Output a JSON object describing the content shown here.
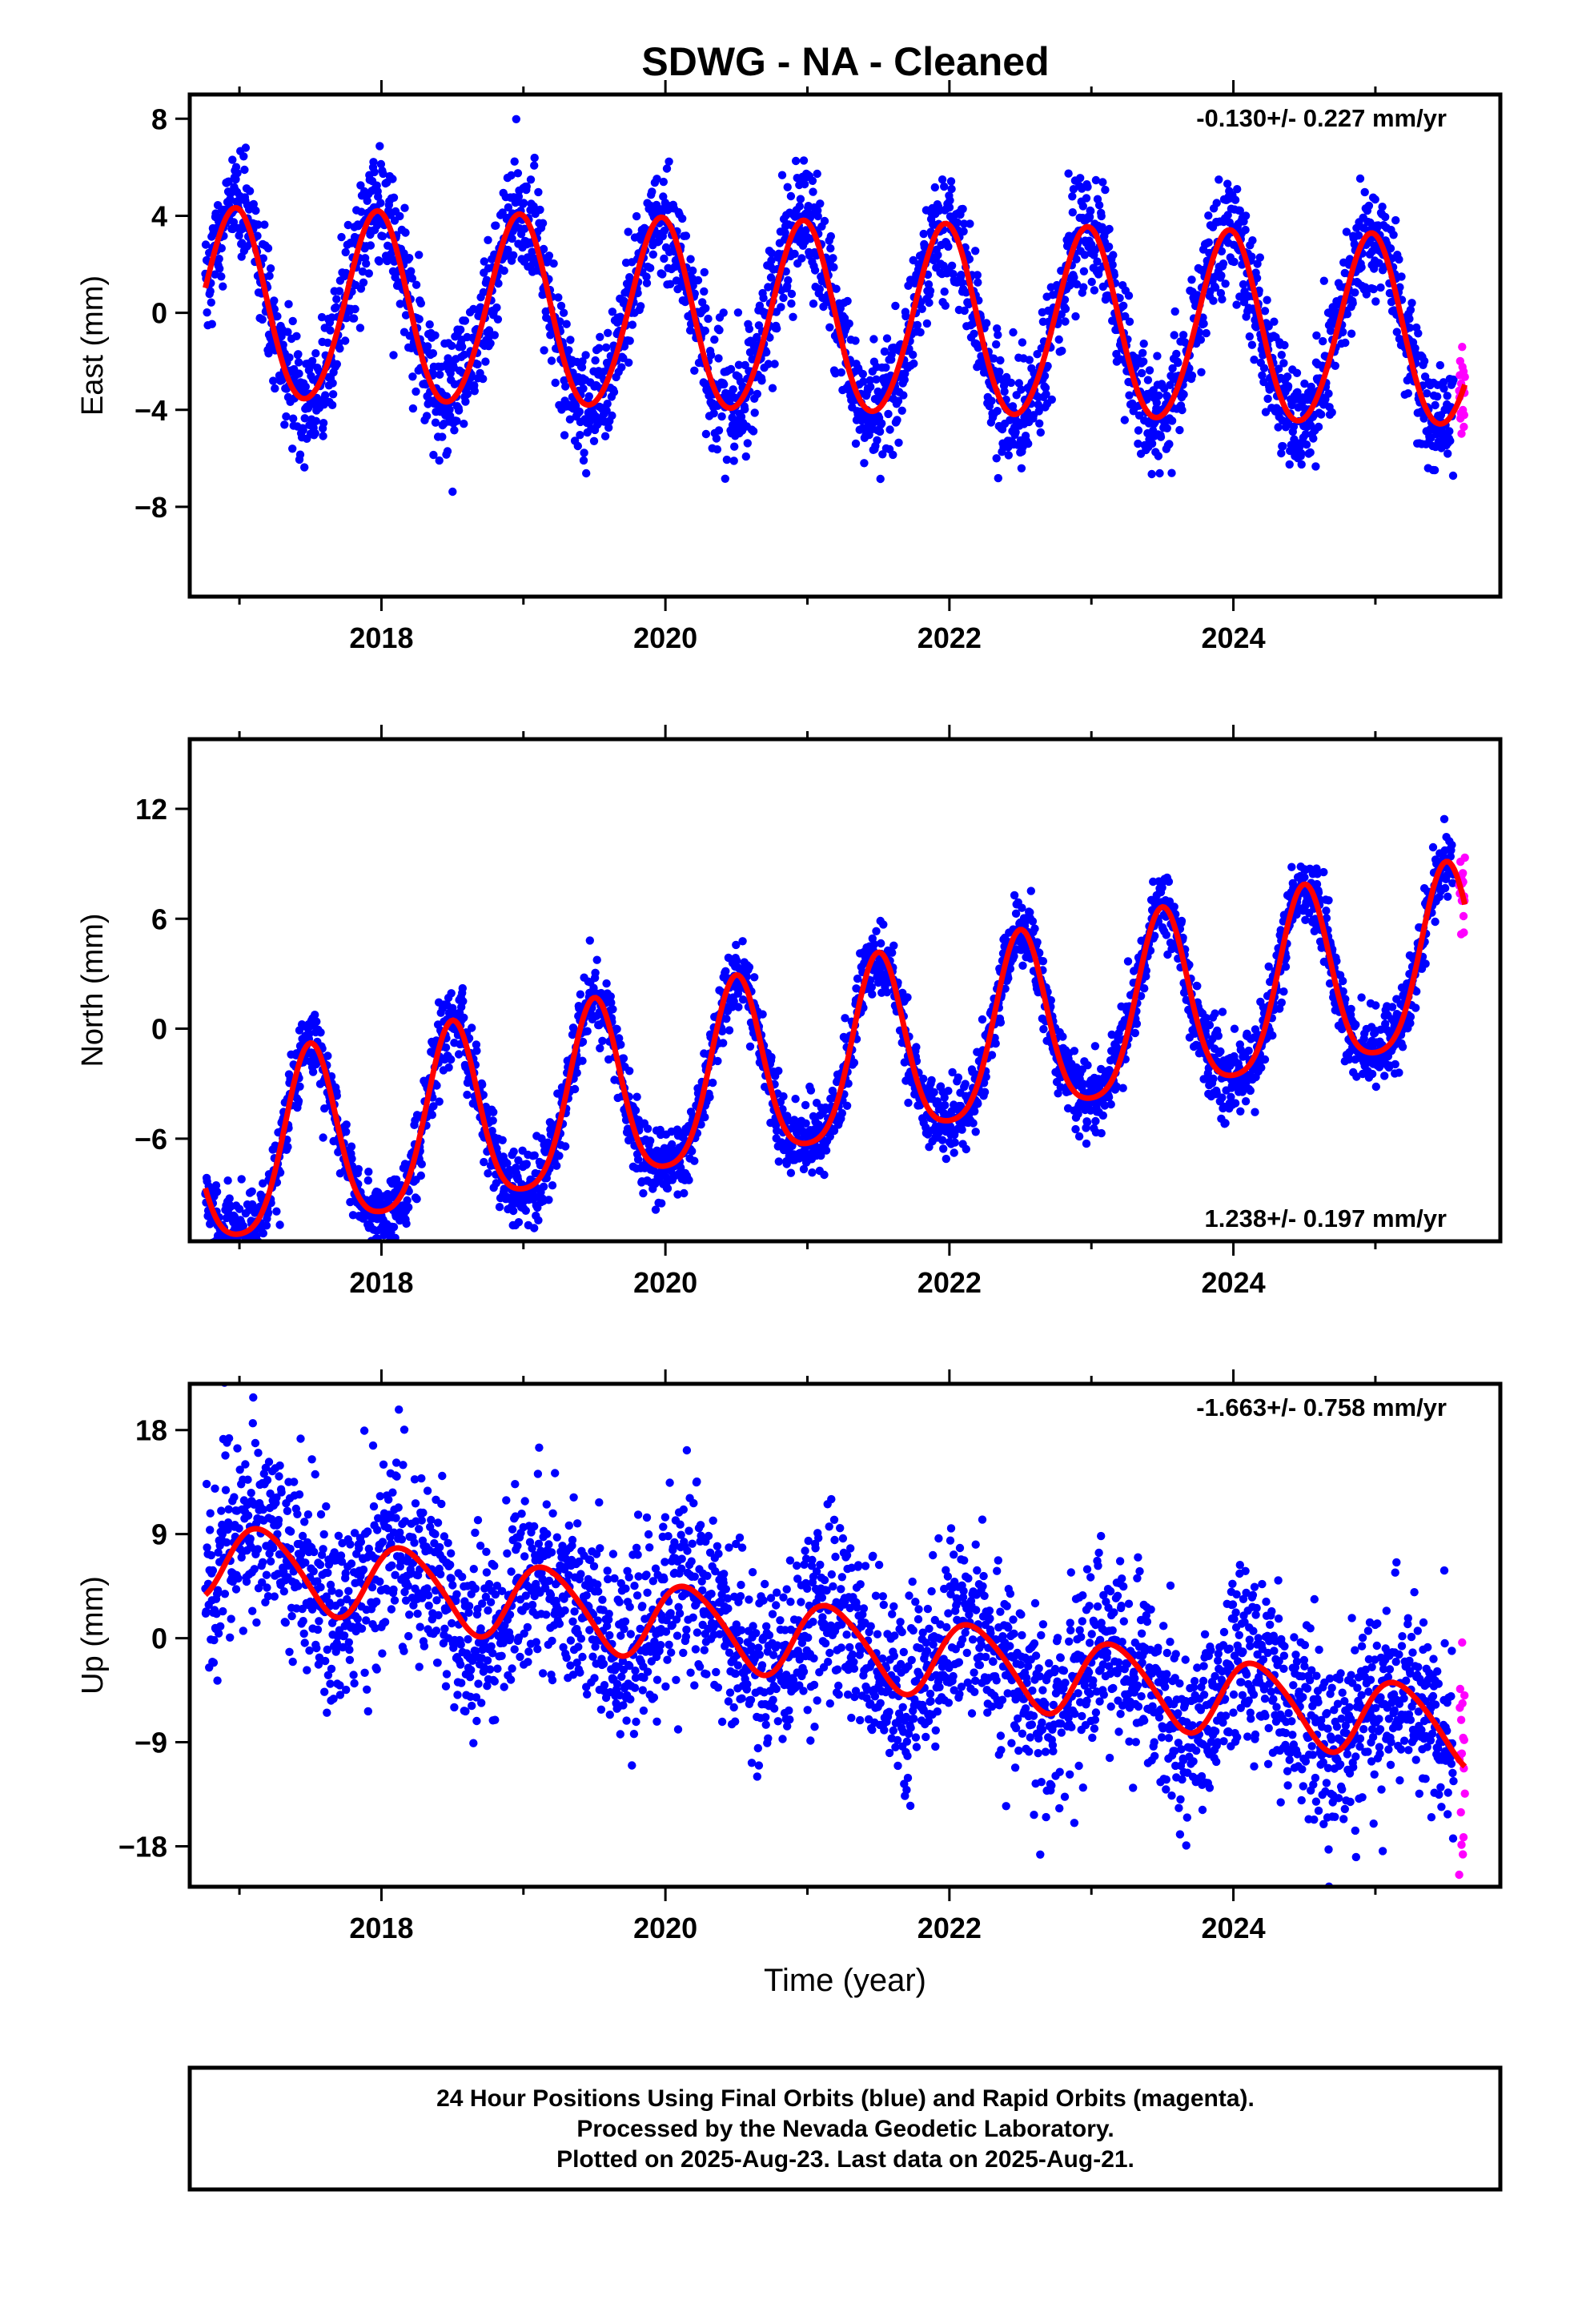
{
  "figure_title": "SDWG  - NA - Cleaned",
  "colors": {
    "final_orbits": "#0000ff",
    "rapid_orbits": "#ff00ff",
    "model_fit": "#ff0000",
    "frame": "#000000"
  },
  "caption": {
    "line1": "24 Hour Positions Using Final Orbits (blue) and Rapid Orbits (magenta).",
    "line2": "Processed by the Nevada Geodetic Laboratory.",
    "line3": "Plotted on 2025-Aug-23. Last data on 2025-Aug-21."
  },
  "chart_data": [
    {
      "type": "scatter",
      "title": "",
      "xlabel": "",
      "ylabel": "East (mm)",
      "xlim": [
        2016.65,
        2025.88
      ],
      "ylim": [
        -11.7,
        9.0
      ],
      "x_ticks": [
        2018,
        2020,
        2022,
        2024
      ],
      "y_ticks": [
        -8,
        -4,
        0,
        4,
        8
      ],
      "rate_label": "-0.130+/- 0.227 mm/yr",
      "rate_position": "top-right",
      "model": {
        "offset": -0.35,
        "rate": -0.13,
        "annual_amp": 3.9,
        "annual_phase_deg": -12,
        "t0": 2021.2,
        "semiannual_amp": 0.25
      },
      "noise_sd": 1.2,
      "final_data_start": 2016.76,
      "final_data_end": 2025.55,
      "rapid_data_end": 2025.63,
      "point_count": 3000
    },
    {
      "type": "scatter",
      "title": "",
      "xlabel": "",
      "ylabel": "North (mm)",
      "xlim": [
        2016.65,
        2025.88
      ],
      "ylim": [
        -11.6,
        15.8
      ],
      "x_ticks": [
        2018,
        2020,
        2022,
        2024
      ],
      "y_ticks": [
        -6,
        0,
        6,
        12
      ],
      "rate_label": "1.238+/- 0.197 mm/yr",
      "rate_position": "bottom-right",
      "model": {
        "offset": -2.0,
        "rate": 1.238,
        "annual_amp": 4.9,
        "annual_phase_deg": 180,
        "t0": 2021.2,
        "semiannual_amp": 0.9
      },
      "noise_sd": 1.0,
      "final_data_start": 2016.76,
      "final_data_end": 2025.55,
      "rapid_data_end": 2025.63,
      "point_count": 3000
    },
    {
      "type": "scatter",
      "title": "",
      "xlabel": "Time (year)",
      "ylabel": "Up (mm)",
      "xlim": [
        2016.65,
        2025.88
      ],
      "ylim": [
        -21.5,
        22.0
      ],
      "x_ticks": [
        2018,
        2020,
        2022,
        2024
      ],
      "y_ticks": [
        -18,
        -9,
        0,
        9,
        18
      ],
      "rate_label": "-1.663+/- 0.758 mm/yr",
      "rate_position": "top-right",
      "model": {
        "offset": -0.5,
        "rate": -1.663,
        "annual_amp": 3.3,
        "annual_phase_deg": 60,
        "t0": 2021.2,
        "semiannual_amp": 0.4
      },
      "noise_sd": 4.0,
      "final_data_start": 2016.76,
      "final_data_end": 2025.55,
      "rapid_data_end": 2025.63,
      "point_count": 3000
    }
  ]
}
